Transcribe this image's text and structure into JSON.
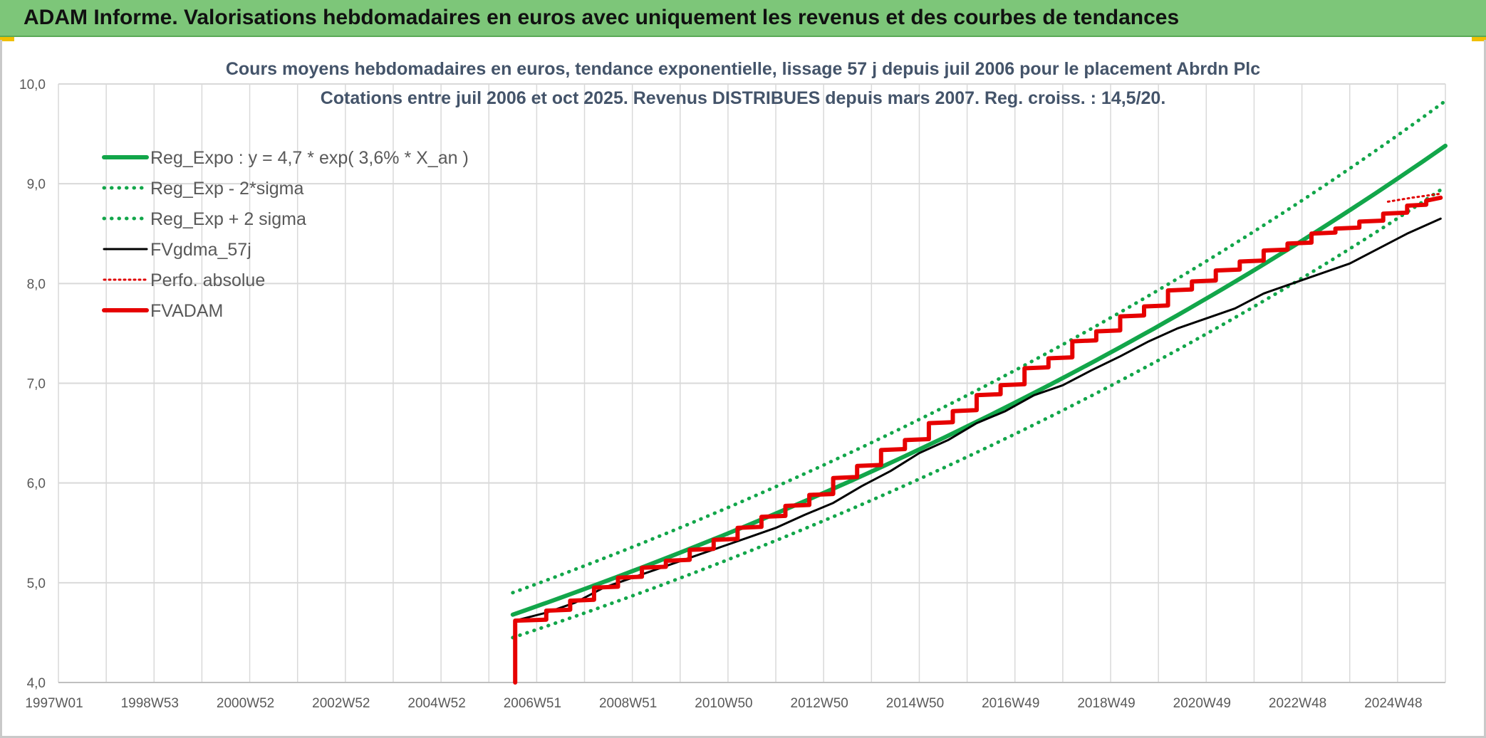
{
  "header": {
    "title": "ADAM Informe. Valorisations hebdomadaires en euros avec uniquement les revenus et des courbes de tendances"
  },
  "colors": {
    "banner": "#7dc679",
    "reg_expo": "#12a64a",
    "fvgdma": "#000000",
    "perfo": "#e00000",
    "fvadam": "#e60000",
    "grid": "#d9d9d9",
    "text": "#595959",
    "title": "#44546a"
  },
  "chart_data": {
    "type": "line",
    "title": "Cours moyens hebdomadaires en euros, tendance exponentielle, lissage 57 j depuis juil 2006 pour le placement Abrdn Plc",
    "subtitle": "Cotations entre juil 2006 et oct 2025. Revenus DISTRIBUES depuis mars 2007. Reg. croiss. : 14,5/20.",
    "x_tick_labels": [
      "1997W01",
      "1998W53",
      "2000W52",
      "2002W52",
      "2004W52",
      "2006W51",
      "2008W51",
      "2010W50",
      "2012W50",
      "2014W50",
      "2016W49",
      "2018W49",
      "2020W49",
      "2022W48",
      "2024W48"
    ],
    "x_tick_years": [
      1997.0,
      1999.0,
      2001.0,
      2003.0,
      2005.0,
      2007.0,
      2009.0,
      2011.0,
      2013.0,
      2015.0,
      2017.0,
      2019.0,
      2021.0,
      2023.0,
      2025.0
    ],
    "x_range": [
      1997.0,
      2026.0
    ],
    "y_ticks": [
      "4,0",
      "5,0",
      "6,0",
      "7,0",
      "8,0",
      "9,0",
      "10,0"
    ],
    "ylim": [
      4.0,
      10.0
    ],
    "grid": true,
    "legend_position": "top-left",
    "regression": {
      "start_year": 2006.5,
      "end_year": 2026.0,
      "start_value": 4.68,
      "end_value": 9.38,
      "minus_2sigma_start": 4.45,
      "minus_2sigma_end": 8.97,
      "plus_2sigma_start": 4.9,
      "plus_2sigma_end": 9.83
    },
    "series": [
      {
        "name": "Reg_Expo : y = 4,7 * exp( 3,6% *  X_an )",
        "style": "solid-green",
        "x": [
          2006.5,
          2008.0,
          2010.0,
          2012.0,
          2014.0,
          2016.0,
          2018.0,
          2020.0,
          2022.0,
          2024.0,
          2026.0
        ],
        "values": [
          4.68,
          4.93,
          5.29,
          5.69,
          6.12,
          6.58,
          7.07,
          7.6,
          8.17,
          8.78,
          9.38
        ]
      },
      {
        "name": "Reg_Exp - 2*sigma",
        "style": "dotted-green",
        "x": [
          2006.5,
          2008.0,
          2010.0,
          2012.0,
          2014.0,
          2016.0,
          2018.0,
          2020.0,
          2022.0,
          2024.0,
          2026.0
        ],
        "values": [
          4.45,
          4.69,
          5.04,
          5.42,
          5.83,
          6.27,
          6.74,
          7.25,
          7.8,
          8.39,
          8.97
        ]
      },
      {
        "name": "Reg_Exp + 2 sigma",
        "style": "dotted-green",
        "x": [
          2006.5,
          2008.0,
          2010.0,
          2012.0,
          2014.0,
          2016.0,
          2018.0,
          2020.0,
          2022.0,
          2024.0,
          2026.0
        ],
        "values": [
          4.9,
          5.16,
          5.54,
          5.95,
          6.39,
          6.87,
          7.39,
          7.95,
          8.54,
          9.17,
          9.83
        ]
      },
      {
        "name": "FVgdma_57j",
        "style": "solid-black",
        "x": [
          2006.55,
          2007.2,
          2007.8,
          2008.4,
          2009.0,
          2009.6,
          2010.2,
          2010.8,
          2011.4,
          2012.0,
          2012.6,
          2013.2,
          2013.8,
          2014.4,
          2015.0,
          2015.6,
          2016.2,
          2016.8,
          2017.4,
          2018.0,
          2018.6,
          2019.2,
          2019.8,
          2020.4,
          2021.0,
          2021.6,
          2022.2,
          2022.8,
          2023.4,
          2024.0,
          2024.6,
          2025.2,
          2025.9
        ],
        "values": [
          4.62,
          4.7,
          4.8,
          4.95,
          5.05,
          5.15,
          5.25,
          5.35,
          5.45,
          5.55,
          5.68,
          5.8,
          5.97,
          6.12,
          6.3,
          6.43,
          6.6,
          6.72,
          6.88,
          6.98,
          7.13,
          7.27,
          7.42,
          7.55,
          7.65,
          7.75,
          7.9,
          8.0,
          8.1,
          8.2,
          8.35,
          8.5,
          8.65
        ]
      },
      {
        "name": "Perfo. absolue",
        "style": "dotted-red",
        "x": [
          2024.8,
          2025.3,
          2025.9
        ],
        "values": [
          8.82,
          8.86,
          8.9
        ]
      },
      {
        "name": "FVADAM",
        "style": "solid-red",
        "x": [
          2006.55,
          2006.55,
          2007.2,
          2007.2,
          2007.7,
          2007.7,
          2008.2,
          2008.2,
          2008.7,
          2008.7,
          2009.2,
          2009.2,
          2009.7,
          2009.7,
          2010.2,
          2010.2,
          2010.7,
          2010.7,
          2011.2,
          2011.2,
          2011.7,
          2011.7,
          2012.2,
          2012.2,
          2012.7,
          2012.7,
          2013.2,
          2013.2,
          2013.7,
          2013.7,
          2014.2,
          2014.2,
          2014.7,
          2014.7,
          2015.2,
          2015.2,
          2015.7,
          2015.7,
          2016.2,
          2016.2,
          2016.7,
          2016.7,
          2017.2,
          2017.2,
          2017.7,
          2017.7,
          2018.2,
          2018.2,
          2018.7,
          2018.7,
          2019.2,
          2019.2,
          2019.7,
          2019.7,
          2020.2,
          2020.2,
          2020.7,
          2020.7,
          2021.2,
          2021.2,
          2021.7,
          2021.7,
          2022.2,
          2022.2,
          2022.7,
          2022.7,
          2023.2,
          2023.2,
          2023.7,
          2023.7,
          2024.2,
          2024.2,
          2024.7,
          2024.7,
          2025.2,
          2025.2,
          2025.6,
          2025.6,
          2025.9
        ],
        "values": [
          4.0,
          4.62,
          4.63,
          4.72,
          4.73,
          4.82,
          4.83,
          4.95,
          4.96,
          5.05,
          5.06,
          5.15,
          5.16,
          5.22,
          5.23,
          5.33,
          5.34,
          5.43,
          5.44,
          5.55,
          5.56,
          5.66,
          5.67,
          5.77,
          5.78,
          5.88,
          5.89,
          6.05,
          6.06,
          6.17,
          6.18,
          6.33,
          6.34,
          6.43,
          6.44,
          6.6,
          6.61,
          6.72,
          6.73,
          6.88,
          6.89,
          6.98,
          6.99,
          7.15,
          7.16,
          7.25,
          7.26,
          7.42,
          7.43,
          7.52,
          7.53,
          7.67,
          7.68,
          7.77,
          7.78,
          7.93,
          7.94,
          8.02,
          8.03,
          8.13,
          8.14,
          8.22,
          8.23,
          8.33,
          8.34,
          8.4,
          8.41,
          8.5,
          8.51,
          8.55,
          8.56,
          8.62,
          8.63,
          8.7,
          8.71,
          8.78,
          8.79,
          8.83,
          8.86
        ]
      }
    ]
  }
}
